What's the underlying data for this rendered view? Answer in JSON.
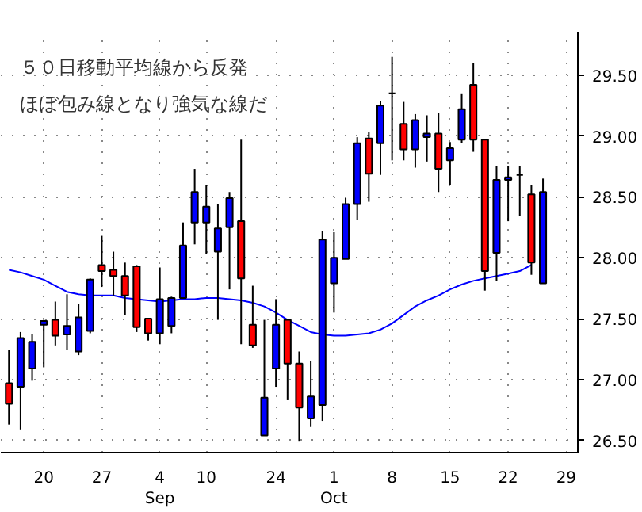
{
  "chart_data": {
    "type": "candlestick",
    "annotations": [
      "５０日移動平均線から反発",
      "ほぼ包み線となり強気な線だ"
    ],
    "categories": [
      null,
      null,
      null,
      "20",
      null,
      null,
      null,
      null,
      "27",
      null,
      null,
      null,
      null,
      "4\nSep",
      null,
      null,
      null,
      "10",
      null,
      null,
      null,
      null,
      null,
      "24",
      null,
      null,
      null,
      null,
      "1\nOct",
      null,
      null,
      null,
      null,
      "8",
      null,
      null,
      null,
      null,
      "15",
      null,
      null,
      null,
      null,
      "22",
      null,
      null,
      null,
      null,
      "29"
    ],
    "ohlc": [
      [
        26.97,
        27.24,
        26.63,
        26.8
      ],
      [
        26.94,
        27.39,
        26.59,
        27.34
      ],
      [
        27.09,
        27.37,
        26.99,
        27.31
      ],
      [
        27.45,
        27.49,
        27.1,
        27.48
      ],
      [
        27.49,
        27.64,
        27.28,
        27.36
      ],
      [
        27.37,
        27.7,
        27.24,
        27.44
      ],
      [
        27.23,
        27.62,
        27.2,
        27.51
      ],
      [
        27.4,
        27.83,
        27.38,
        27.82
      ],
      [
        27.94,
        28.18,
        27.76,
        27.89
      ],
      [
        27.9,
        28.05,
        27.69,
        27.85
      ],
      [
        27.85,
        27.96,
        27.53,
        27.69
      ],
      [
        27.93,
        27.94,
        27.39,
        27.43
      ],
      [
        27.5,
        27.5,
        27.32,
        27.38
      ],
      [
        27.38,
        27.92,
        27.29,
        27.66
      ],
      [
        27.44,
        27.68,
        27.38,
        27.67
      ],
      [
        27.67,
        28.29,
        27.67,
        28.1
      ],
      [
        28.29,
        28.73,
        28.11,
        28.54
      ],
      [
        28.29,
        28.6,
        28.03,
        28.42
      ],
      [
        28.05,
        28.44,
        27.49,
        28.24
      ],
      [
        28.25,
        28.54,
        27.74,
        28.49
      ],
      [
        28.3,
        28.97,
        27.29,
        27.83
      ],
      [
        27.45,
        27.77,
        27.26,
        27.28
      ],
      [
        26.54,
        27.49,
        26.54,
        26.85
      ],
      [
        27.09,
        27.66,
        26.94,
        27.45
      ],
      [
        27.49,
        27.49,
        26.83,
        27.13
      ],
      [
        27.13,
        27.23,
        26.49,
        26.77
      ],
      [
        26.68,
        27.15,
        26.61,
        26.86
      ],
      [
        26.79,
        28.22,
        26.66,
        28.15
      ],
      [
        27.79,
        28.21,
        27.55,
        28.0
      ],
      [
        27.99,
        28.49,
        27.99,
        28.44
      ],
      [
        28.44,
        28.99,
        28.31,
        28.94
      ],
      [
        28.98,
        29.03,
        28.46,
        28.69
      ],
      [
        28.94,
        29.29,
        28.68,
        29.25
      ],
      [
        29.35,
        29.65,
        28.8,
        29.35
      ],
      [
        29.1,
        29.28,
        28.8,
        28.89
      ],
      [
        28.89,
        29.18,
        28.74,
        29.13
      ],
      [
        28.99,
        29.17,
        28.79,
        29.02
      ],
      [
        29.02,
        29.19,
        28.54,
        28.73
      ],
      [
        28.8,
        28.95,
        28.6,
        28.9
      ],
      [
        28.97,
        29.35,
        28.94,
        29.22
      ],
      [
        29.42,
        29.6,
        28.87,
        28.97
      ],
      [
        28.97,
        28.97,
        27.73,
        27.89
      ],
      [
        28.04,
        28.75,
        27.81,
        28.64
      ],
      [
        28.64,
        28.75,
        28.3,
        28.66
      ],
      [
        28.68,
        28.75,
        28.34,
        28.68
      ],
      [
        28.52,
        28.6,
        27.86,
        27.96
      ],
      [
        27.79,
        28.65,
        27.79,
        28.54
      ],
      null,
      null
    ],
    "colors": [
      "#ff0000",
      "#0000ff",
      "#0000ff",
      "#0000ff",
      "#ff0000",
      "#0000ff",
      "#0000ff",
      "#0000ff",
      "#ff0000",
      "#ff0000",
      "#ff0000",
      "#ff0000",
      "#ff0000",
      "#0000ff",
      "#0000ff",
      "#0000ff",
      "#0000ff",
      "#0000ff",
      "#0000ff",
      "#0000ff",
      "#ff0000",
      "#ff0000",
      "#0000ff",
      "#0000ff",
      "#ff0000",
      "#ff0000",
      "#0000ff",
      "#0000ff",
      "#0000ff",
      "#0000ff",
      "#0000ff",
      "#ff0000",
      "#0000ff",
      "#000000",
      "#ff0000",
      "#0000ff",
      "#0000ff",
      "#ff0000",
      "#0000ff",
      "#0000ff",
      "#ff0000",
      "#ff0000",
      "#0000ff",
      "#0000ff",
      "#000000",
      "#ff0000",
      "#0000ff",
      null,
      null
    ],
    "series": [
      {
        "type": "line",
        "color": "#0000ff",
        "values": [
          27.9,
          27.88,
          27.85,
          27.82,
          27.77,
          27.72,
          27.7,
          27.69,
          27.69,
          27.69,
          27.67,
          27.66,
          27.65,
          27.64,
          27.65,
          27.66,
          27.66,
          27.67,
          27.67,
          27.66,
          27.65,
          27.63,
          27.6,
          27.55,
          27.49,
          27.44,
          27.39,
          27.37,
          27.36,
          27.36,
          27.37,
          27.38,
          27.41,
          27.46,
          27.53,
          27.6,
          27.65,
          27.69,
          27.74,
          27.78,
          27.81,
          27.83,
          27.85,
          27.87,
          27.89,
          27.94,
          null,
          null,
          null
        ]
      }
    ],
    "ylim": [
      26.4,
      29.85
    ],
    "yticks": [
      {
        "value": 26.5,
        "label": "26.50"
      },
      {
        "value": 27,
        "label": "27.00"
      },
      {
        "value": 27.5,
        "label": "27.50"
      },
      {
        "value": 28,
        "label": "28.00"
      },
      {
        "value": 28.5,
        "label": "28.50"
      },
      {
        "value": 29,
        "label": "29.00"
      },
      {
        "value": 29.5,
        "label": "29.50"
      }
    ],
    "grid": true
  }
}
